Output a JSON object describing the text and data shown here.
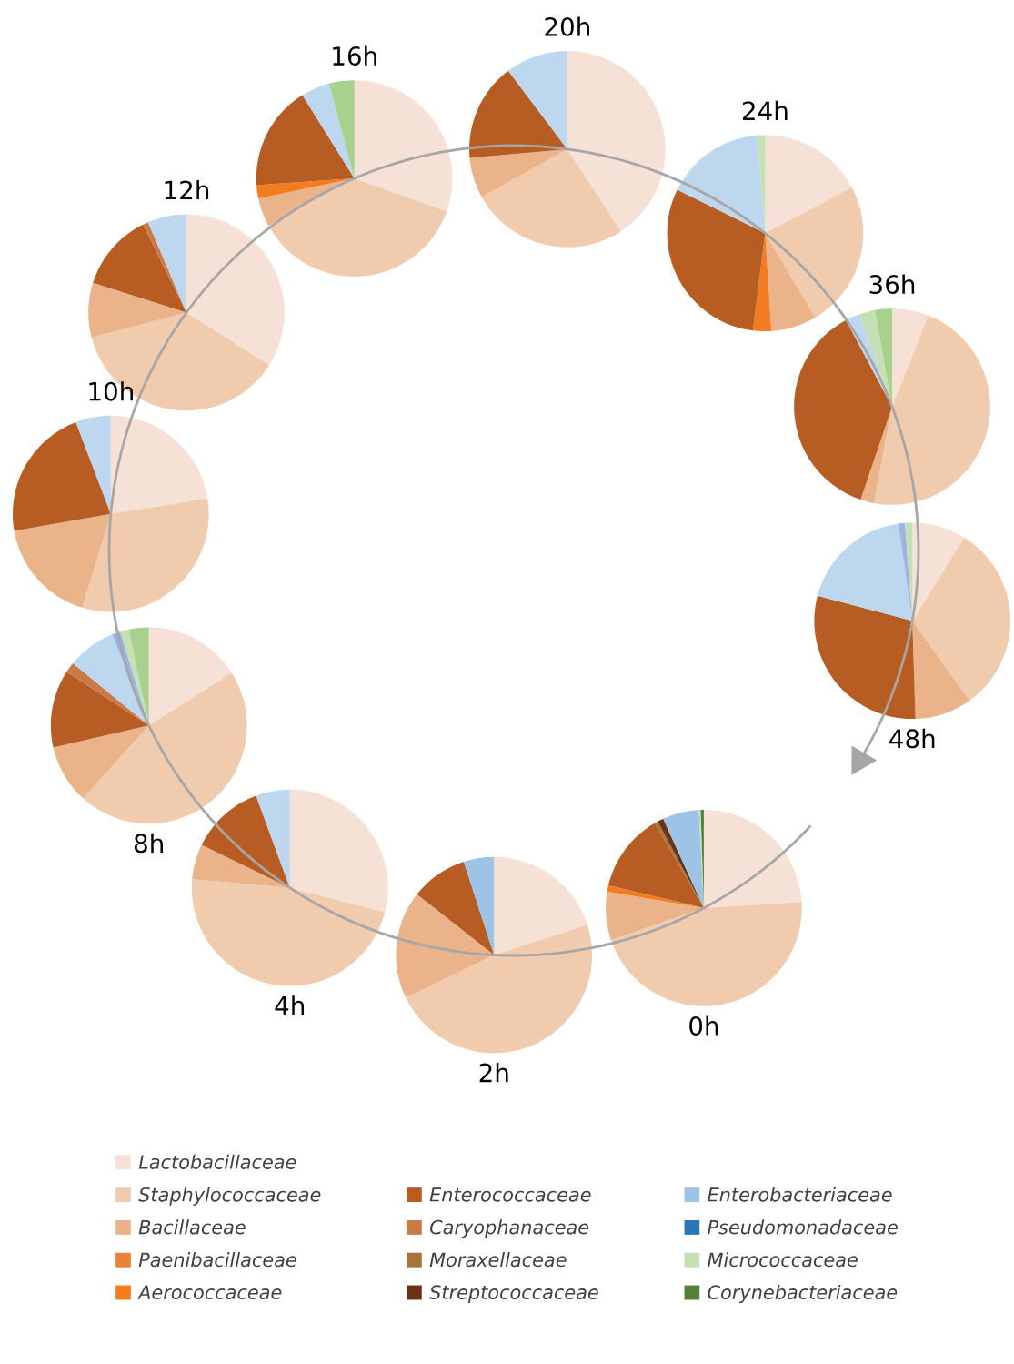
{
  "chart_data": [
    {
      "type": "pie",
      "title": "0h",
      "legend": "bottom",
      "categories": [
        "Lactobacillaceae",
        "Staphylococcaceae",
        "Bacillaceae",
        "Paenibacillaceae",
        "Aerococcaceae",
        "Enterococcaceae",
        "Caryophanaceae",
        "Moraxellaceae",
        "Streptococcaceae",
        "Enterobacteriaceae",
        "Pseudomonadaceae",
        "Micrococcaceae",
        "Corynebacteriaceae"
      ],
      "values": [
        24,
        45.7,
        8,
        null,
        1,
        13,
        null,
        0.5,
        1,
        6,
        null,
        0.3,
        0.5
      ],
      "colors": [
        "#f5e1d5",
        "#f0cbad",
        "#eab38a",
        "#e8823a",
        "#f47c20",
        "#b75d24",
        "#c97a47",
        "#a87439",
        "#6a3516",
        "#9dc3e6",
        "#2e75b6",
        "#c5e0b4",
        "#548235"
      ]
    },
    {
      "type": "pie",
      "title": "2h",
      "categories": [
        null,
        null,
        null,
        null,
        null,
        null,
        null,
        null,
        null,
        null,
        null,
        null,
        null
      ],
      "values": [
        20,
        47.8,
        17.8,
        null,
        null,
        9.4,
        null,
        null,
        null,
        5,
        null,
        null,
        null
      ],
      "colors": [
        "#f5e1d5",
        "#f0cbad",
        "#eab38a",
        "#e8823a",
        "#f47c20",
        "#b75d24",
        "#c97a47",
        "#a87439",
        "#6a3516",
        "#9dc3e6",
        "#2e75b6",
        "#c5e0b4",
        "#548235"
      ]
    },
    {
      "type": "pie",
      "title": "4h",
      "categories": [
        null,
        null,
        null,
        null,
        null,
        null,
        null,
        null,
        null,
        null,
        null,
        null,
        null
      ],
      "values": [
        29,
        47.4,
        5.8,
        null,
        null,
        12.2,
        null,
        null,
        null,
        5.6,
        null,
        null,
        null
      ],
      "colors": [
        "#f5e1d5",
        "#f0cbad",
        "#eab38a",
        "#e8823a",
        "#f47c20",
        "#b75d24",
        "#c97a47",
        "#a87439",
        "#6a3516",
        "#bdd7ee",
        "#2e75b6",
        "#c5e0b4",
        "#548235"
      ]
    },
    {
      "type": "pie",
      "title": "8h",
      "categories": [
        null,
        null,
        null,
        null,
        null,
        null,
        null,
        null,
        null,
        null,
        null,
        null,
        null
      ],
      "values": [
        16,
        45.7,
        9.7,
        null,
        null,
        12.8,
        1.7,
        null,
        null,
        8,
        1.4,
        1.4,
        3.3
      ],
      "colors": [
        "#f5e1d5",
        "#f0cbad",
        "#eab38a",
        "#e8823a",
        "#f47c20",
        "#b75d24",
        "#c97a47",
        "#a87439",
        "#6a3516",
        "#bdd7ee",
        "#9db4e4",
        "#c5e0b4",
        "#a9d18e"
      ]
    },
    {
      "type": "pie",
      "title": "10h",
      "categories": [
        null,
        null,
        null,
        null,
        null,
        null,
        null,
        null,
        null,
        null,
        null,
        null,
        null
      ],
      "values": [
        22.5,
        32.2,
        17.5,
        null,
        null,
        22,
        null,
        null,
        null,
        5.8,
        null,
        null,
        null
      ],
      "colors": [
        "#f5e1d5",
        "#f0cbad",
        "#eab38a",
        "#e8823a",
        "#f47c20",
        "#b75d24",
        "#c97a47",
        "#a87439",
        "#6a3516",
        "#bdd7ee",
        "#2e75b6",
        "#c5e0b4",
        "#548235"
      ]
    },
    {
      "type": "pie",
      "title": "12h",
      "categories": [
        null,
        null,
        null,
        null,
        null,
        null,
        null,
        null,
        null,
        null,
        null,
        null,
        null
      ],
      "values": [
        34,
        36.9,
        9,
        null,
        null,
        12.8,
        0.9,
        null,
        null,
        6.4,
        null,
        null,
        null
      ],
      "colors": [
        "#f5e1d5",
        "#f0cbad",
        "#eab38a",
        "#e8823a",
        "#f47c20",
        "#b75d24",
        "#c97a47",
        "#a87439",
        "#6a3516",
        "#bdd7ee",
        "#2e75b6",
        "#c5e0b4",
        "#548235"
      ]
    },
    {
      "type": "pie",
      "title": "16h",
      "categories": [
        null,
        null,
        null,
        null,
        null,
        null,
        null,
        null,
        null,
        null,
        null,
        null,
        null
      ],
      "values": [
        30.5,
        36.5,
        4.7,
        null,
        2.2,
        17.2,
        null,
        null,
        null,
        4.7,
        null,
        null,
        4.2
      ],
      "colors": [
        "#f5e1d5",
        "#f0cbad",
        "#eab38a",
        "#e8823a",
        "#f47c20",
        "#b75d24",
        "#c97a47",
        "#a87439",
        "#6a3516",
        "#bdd7ee",
        "#2e75b6",
        "#c5e0b4",
        "#a9d18e"
      ]
    },
    {
      "type": "pie",
      "title": "20h",
      "categories": [
        null,
        null,
        null,
        null,
        null,
        null,
        null,
        null,
        null,
        null,
        null,
        null,
        null
      ],
      "values": [
        40.8,
        26.1,
        6.7,
        null,
        null,
        16.1,
        null,
        null,
        null,
        10.3,
        null,
        null,
        null
      ],
      "colors": [
        "#f5e1d5",
        "#f0cbad",
        "#eab38a",
        "#e8823a",
        "#f47c20",
        "#b75d24",
        "#c97a47",
        "#a87439",
        "#6a3516",
        "#bdd7ee",
        "#2e75b6",
        "#c5e0b4",
        "#548235"
      ]
    },
    {
      "type": "pie",
      "title": "24h",
      "categories": [
        null,
        null,
        null,
        null,
        null,
        null,
        null,
        null,
        null,
        null,
        null,
        null,
        null
      ],
      "values": [
        17.3,
        24.2,
        7.5,
        null,
        3,
        30.3,
        null,
        null,
        null,
        16.4,
        null,
        1.3,
        null
      ],
      "colors": [
        "#f5e1d5",
        "#f0cbad",
        "#eab38a",
        "#e8823a",
        "#f47c20",
        "#b75d24",
        "#c97a47",
        "#a87439",
        "#6a3516",
        "#bdd7ee",
        "#2e75b6",
        "#c5e0b4",
        "#548235"
      ]
    },
    {
      "type": "pie",
      "title": "36h",
      "categories": [
        null,
        null,
        null,
        null,
        null,
        null,
        null,
        null,
        null,
        null,
        null,
        null,
        null
      ],
      "values": [
        6,
        47,
        2.2,
        null,
        null,
        37,
        null,
        null,
        null,
        2.4,
        null,
        2.6,
        2.8
      ],
      "colors": [
        "#f5e1d5",
        "#f0cbad",
        "#eab38a",
        "#e8823a",
        "#f47c20",
        "#b75d24",
        "#c97a47",
        "#a87439",
        "#6a3516",
        "#bdd7ee",
        "#2e75b6",
        "#c5e0b4",
        "#a9d18e"
      ]
    },
    {
      "type": "pie",
      "title": "48h",
      "categories": [
        null,
        null,
        null,
        null,
        null,
        null,
        null,
        null,
        null,
        null,
        null,
        null,
        null
      ],
      "values": [
        8.9,
        31.2,
        9.4,
        null,
        null,
        29.6,
        null,
        null,
        null,
        18.6,
        1.1,
        1.2,
        null
      ],
      "colors": [
        "#f5e1d5",
        "#f0cbad",
        "#eab38a",
        "#e8823a",
        "#f47c20",
        "#b75d24",
        "#c97a47",
        "#a87439",
        "#6a3516",
        "#bdd7ee",
        "#9db4e4",
        "#c5e0b4",
        "#548235"
      ]
    }
  ]
}
